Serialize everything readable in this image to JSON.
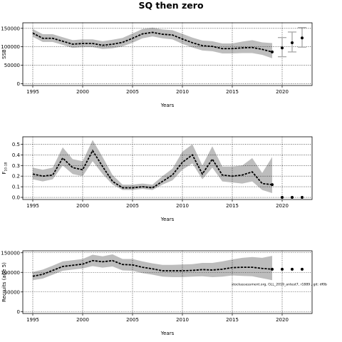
{
  "figure": {
    "title": "SQ then zero",
    "footnote": "stockassessment.org, GLL_2019_antest7, r1889 , git: df0b"
  },
  "colors": {
    "band": "#bdbdbd",
    "line": "#000000",
    "dots": "#000000",
    "forecast_bar": "#a6a6a6",
    "grid": "#000000"
  },
  "chart_data": [
    {
      "type": "line",
      "title": "",
      "xlabel": "Years",
      "ylabel": "SSB",
      "xlim": [
        1994,
        2023
      ],
      "ylim": [
        -5000,
        165000
      ],
      "xticks": [
        1995,
        2000,
        2005,
        2010,
        2015,
        2020
      ],
      "yticks": [
        0,
        50000,
        100000,
        150000
      ],
      "grid": true,
      "x": [
        1995,
        1996,
        1997,
        1998,
        1999,
        2000,
        2001,
        2002,
        2003,
        2004,
        2005,
        2006,
        2007,
        2008,
        2009,
        2010,
        2011,
        2012,
        2013,
        2014,
        2015,
        2016,
        2017,
        2018,
        2019
      ],
      "y": [
        137000,
        123000,
        123000,
        115000,
        107000,
        109000,
        109000,
        104000,
        107000,
        112000,
        123000,
        135000,
        139000,
        134000,
        132000,
        121000,
        111000,
        103000,
        101000,
        95000,
        95000,
        97000,
        98000,
        93000,
        86000
      ],
      "lower": [
        127000,
        113000,
        113000,
        105000,
        97000,
        99000,
        99000,
        94000,
        96000,
        101000,
        111000,
        123000,
        128000,
        123000,
        120000,
        108000,
        98000,
        90000,
        88000,
        82000,
        82000,
        83000,
        83000,
        78000,
        69000
      ],
      "upper": [
        148000,
        134000,
        134000,
        126000,
        118000,
        120000,
        120000,
        115000,
        119000,
        124000,
        136000,
        148000,
        152000,
        147000,
        145000,
        135000,
        125000,
        117000,
        115000,
        109000,
        109000,
        114000,
        118000,
        112000,
        110000
      ],
      "forecast": [
        {
          "x": 2020,
          "y": 97000,
          "lower": 73000,
          "upper": 125000
        },
        {
          "x": 2021,
          "y": 111000,
          "lower": 86000,
          "upper": 140000
        },
        {
          "x": 2022,
          "y": 124000,
          "lower": 99000,
          "upper": 152000
        }
      ]
    },
    {
      "type": "line",
      "title": "",
      "xlabel": "Years",
      "ylabel": "F",
      "ylabel_sub": "10-18",
      "xlim": [
        1994,
        2023
      ],
      "ylim": [
        -0.02,
        0.57
      ],
      "xticks": [
        1995,
        2000,
        2005,
        2010,
        2015,
        2020
      ],
      "yticks": [
        0.0,
        0.1,
        0.2,
        0.3,
        0.4,
        0.5
      ],
      "ytick_labels": [
        "0.0",
        "0.1",
        "0.2",
        "0.3",
        "0.4",
        "0.5"
      ],
      "grid": true,
      "x": [
        1995,
        1996,
        1997,
        1998,
        1999,
        2000,
        2001,
        2002,
        2003,
        2004,
        2005,
        2006,
        2007,
        2008,
        2009,
        2010,
        2011,
        2012,
        2013,
        2014,
        2015,
        2016,
        2017,
        2018,
        2019
      ],
      "y": [
        0.22,
        0.2,
        0.21,
        0.37,
        0.28,
        0.26,
        0.44,
        0.29,
        0.15,
        0.09,
        0.09,
        0.1,
        0.09,
        0.15,
        0.21,
        0.33,
        0.4,
        0.22,
        0.36,
        0.21,
        0.2,
        0.21,
        0.24,
        0.13,
        0.12
      ],
      "lower": [
        0.17,
        0.15,
        0.17,
        0.3,
        0.22,
        0.2,
        0.34,
        0.22,
        0.12,
        0.07,
        0.07,
        0.08,
        0.07,
        0.12,
        0.16,
        0.26,
        0.32,
        0.17,
        0.28,
        0.15,
        0.14,
        0.13,
        0.15,
        0.07,
        0.04
      ],
      "upper": [
        0.28,
        0.26,
        0.28,
        0.47,
        0.36,
        0.34,
        0.54,
        0.38,
        0.21,
        0.12,
        0.12,
        0.13,
        0.12,
        0.2,
        0.27,
        0.43,
        0.5,
        0.3,
        0.48,
        0.29,
        0.29,
        0.3,
        0.37,
        0.23,
        0.38
      ],
      "forecast": [
        {
          "x": 2020,
          "y": 0.0
        },
        {
          "x": 2021,
          "y": 0.0
        },
        {
          "x": 2022,
          "y": 0.0
        }
      ]
    },
    {
      "type": "line",
      "title": "",
      "xlabel": "Years",
      "ylabel": "Recruits (age 5)",
      "xlim": [
        1994,
        2023
      ],
      "ylim": [
        -5000,
        155000
      ],
      "xticks": [
        1995,
        2000,
        2005,
        2010,
        2015,
        2020
      ],
      "yticks": [
        0,
        50000,
        100000,
        150000
      ],
      "grid": true,
      "x": [
        1995,
        1996,
        1997,
        1998,
        1999,
        2000,
        2001,
        2002,
        2003,
        2004,
        2005,
        2006,
        2007,
        2008,
        2009,
        2010,
        2011,
        2012,
        2013,
        2014,
        2015,
        2016,
        2017,
        2018,
        2019
      ],
      "y": [
        90000,
        95000,
        105000,
        115000,
        118000,
        121000,
        130000,
        127000,
        130000,
        120000,
        119000,
        113000,
        109000,
        104000,
        104000,
        104000,
        105000,
        107000,
        106000,
        108000,
        112000,
        113000,
        113000,
        110000,
        108000
      ],
      "lower": [
        80000,
        84000,
        94000,
        104000,
        107000,
        110000,
        116000,
        112000,
        115000,
        105000,
        104000,
        98000,
        94000,
        89000,
        88000,
        88000,
        89000,
        90000,
        88000,
        89000,
        92000,
        91000,
        90000,
        85000,
        80000
      ],
      "upper": [
        101000,
        107000,
        117000,
        128000,
        131000,
        134000,
        145000,
        141000,
        146000,
        134000,
        134000,
        128000,
        123000,
        119000,
        119000,
        120000,
        121000,
        124000,
        124000,
        128000,
        133000,
        137000,
        139000,
        137000,
        142000
      ],
      "forecast": [
        {
          "x": 2020,
          "y": 108000
        },
        {
          "x": 2021,
          "y": 108000
        },
        {
          "x": 2022,
          "y": 108000
        }
      ]
    }
  ]
}
